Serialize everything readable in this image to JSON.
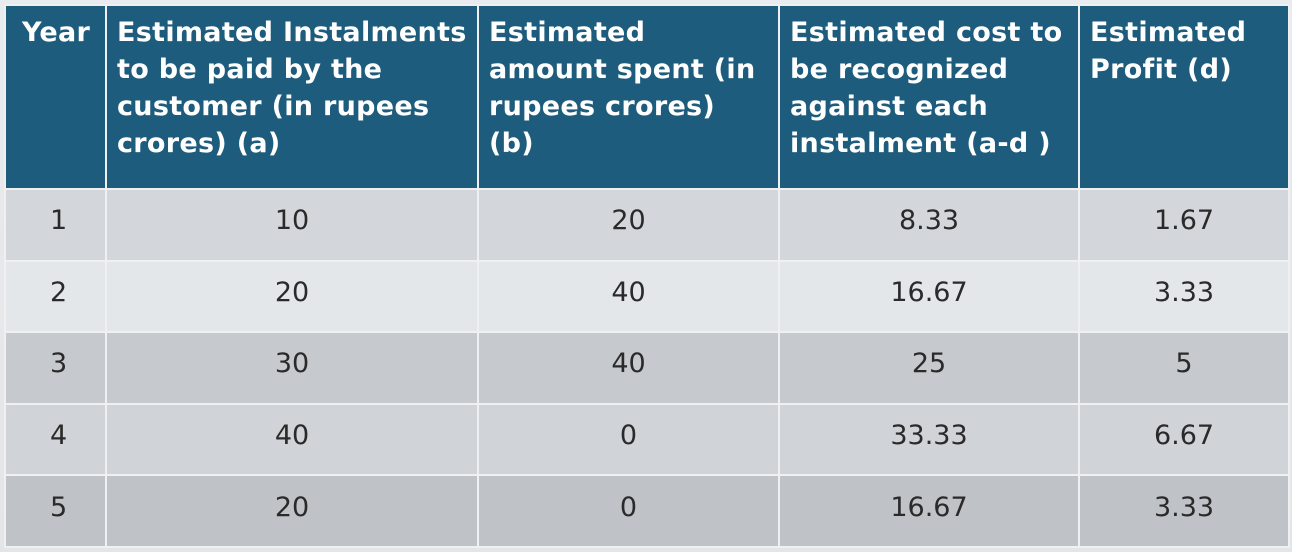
{
  "table": {
    "headers": [
      "Year",
      "Estimated Instalments to be  paid by the customer (in rupees crores) (a)",
      "Estimated amount spent (in rupees crores)  (b)",
      "Estimated cost to be recognized against each instalment  (a-d )",
      "Estimated Profit (d)"
    ],
    "rows": [
      [
        "1",
        "10",
        "20",
        "8.33",
        "1.67"
      ],
      [
        "2",
        "20",
        "40",
        "16.67",
        "3.33"
      ],
      [
        "3",
        "30",
        "40",
        "25",
        "5"
      ],
      [
        "4",
        "40",
        "0",
        "33.33",
        "6.67"
      ],
      [
        "5",
        "20",
        "0",
        "16.67",
        "3.33"
      ]
    ]
  },
  "colors": {
    "header_bg": "#1d5c7c",
    "header_text": "#ffffff",
    "cell_text": "#2a2a2a"
  }
}
